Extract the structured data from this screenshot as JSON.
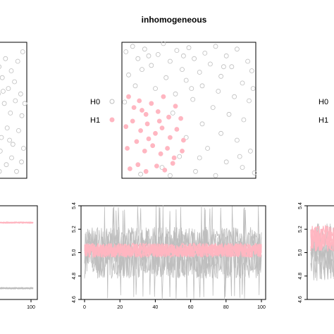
{
  "title": "inhomogeneous",
  "colors": {
    "h0": "#bebebe",
    "h1": "#ffb6c1",
    "frame": "#000000"
  },
  "chart_data": [
    {
      "type": "scatter",
      "panel": "top-left (cropped)",
      "legend": [],
      "series": [
        {
          "name": "",
          "points": [
            [
              0.03,
              0.92
            ],
            [
              0.07,
              0.85
            ],
            [
              0.12,
              0.76
            ],
            [
              0.18,
              0.7
            ],
            [
              0.25,
              0.9
            ],
            [
              0.32,
              0.82
            ],
            [
              0.4,
              0.74
            ],
            [
              0.48,
              0.88
            ],
            [
              0.55,
              0.66
            ],
            [
              0.62,
              0.79
            ],
            [
              0.7,
              0.71
            ],
            [
              0.78,
              0.86
            ],
            [
              0.85,
              0.62
            ],
            [
              0.9,
              0.93
            ],
            [
              0.1,
              0.58
            ],
            [
              0.2,
              0.5
            ],
            [
              0.3,
              0.62
            ],
            [
              0.45,
              0.55
            ],
            [
              0.6,
              0.48
            ],
            [
              0.72,
              0.57
            ],
            [
              0.88,
              0.46
            ],
            [
              0.05,
              0.4
            ],
            [
              0.15,
              0.33
            ],
            [
              0.28,
              0.42
            ],
            [
              0.38,
              0.3
            ],
            [
              0.52,
              0.37
            ],
            [
              0.66,
              0.25
            ],
            [
              0.8,
              0.35
            ],
            [
              0.92,
              0.22
            ],
            [
              0.08,
              0.18
            ],
            [
              0.22,
              0.12
            ],
            [
              0.35,
              0.2
            ],
            [
              0.5,
              0.1
            ],
            [
              0.63,
              0.15
            ],
            [
              0.75,
              0.05
            ],
            [
              0.87,
              0.12
            ],
            [
              0.42,
              0.64
            ],
            [
              0.58,
              0.28
            ],
            [
              0.95,
              0.55
            ],
            [
              0.33,
              0.05
            ]
          ]
        }
      ]
    },
    {
      "type": "scatter",
      "panel": "top-center",
      "legend": [
        "H0",
        "H1"
      ],
      "series": [
        {
          "name": "H0",
          "points": [
            [
              0.03,
              0.93
            ],
            [
              0.08,
              0.97
            ],
            [
              0.12,
              0.88
            ],
            [
              0.17,
              0.95
            ],
            [
              0.22,
              0.83
            ],
            [
              0.27,
              0.91
            ],
            [
              0.31,
              0.99
            ],
            [
              0.36,
              0.86
            ],
            [
              0.41,
              0.94
            ],
            [
              0.45,
              0.8
            ],
            [
              0.5,
              0.96
            ],
            [
              0.54,
              0.88
            ],
            [
              0.58,
              0.78
            ],
            [
              0.62,
              0.92
            ],
            [
              0.66,
              0.84
            ],
            [
              0.7,
              0.97
            ],
            [
              0.74,
              0.75
            ],
            [
              0.78,
              0.9
            ],
            [
              0.82,
              0.82
            ],
            [
              0.86,
              0.95
            ],
            [
              0.9,
              0.7
            ],
            [
              0.94,
              0.86
            ],
            [
              0.97,
              0.79
            ],
            [
              0.05,
              0.76
            ],
            [
              0.15,
              0.8
            ],
            [
              0.33,
              0.74
            ],
            [
              0.48,
              0.72
            ],
            [
              0.6,
              0.68
            ],
            [
              0.72,
              0.64
            ],
            [
              0.84,
              0.6
            ],
            [
              0.95,
              0.57
            ],
            [
              0.4,
              0.62
            ],
            [
              0.53,
              0.58
            ],
            [
              0.68,
              0.52
            ],
            [
              0.8,
              0.47
            ],
            [
              0.91,
              0.43
            ],
            [
              0.98,
              0.66
            ],
            [
              0.6,
              0.4
            ],
            [
              0.74,
              0.33
            ],
            [
              0.86,
              0.28
            ],
            [
              0.96,
              0.2
            ],
            [
              0.64,
              0.22
            ],
            [
              0.78,
              0.12
            ],
            [
              0.9,
              0.08
            ],
            [
              0.55,
              0.05
            ],
            [
              0.7,
              0.02
            ],
            [
              0.99,
              0.04
            ],
            [
              0.48,
              0.3
            ],
            [
              0.43,
              0.16
            ],
            [
              0.1,
              0.68
            ],
            [
              0.25,
              0.66
            ],
            [
              0.38,
              0.48
            ],
            [
              0.02,
              0.56
            ],
            [
              0.14,
              0.03
            ],
            [
              0.3,
              0.08
            ],
            [
              0.36,
              0.02
            ],
            [
              0.88,
              0.16
            ],
            [
              0.58,
              0.15
            ],
            [
              0.2,
              0.9
            ],
            [
              0.46,
              0.9
            ],
            [
              0.76,
              0.82
            ],
            [
              0.52,
              0.66
            ]
          ]
        },
        {
          "name": "H1",
          "points": [
            [
              0.05,
              0.6
            ],
            [
              0.09,
              0.52
            ],
            [
              0.13,
              0.57
            ],
            [
              0.18,
              0.47
            ],
            [
              0.22,
              0.55
            ],
            [
              0.27,
              0.49
            ],
            [
              0.31,
              0.6
            ],
            [
              0.35,
              0.45
            ],
            [
              0.4,
              0.53
            ],
            [
              0.44,
              0.44
            ],
            [
              0.03,
              0.38
            ],
            [
              0.08,
              0.42
            ],
            [
              0.14,
              0.35
            ],
            [
              0.19,
              0.4
            ],
            [
              0.25,
              0.33
            ],
            [
              0.3,
              0.37
            ],
            [
              0.36,
              0.3
            ],
            [
              0.41,
              0.36
            ],
            [
              0.46,
              0.28
            ],
            [
              0.04,
              0.22
            ],
            [
              0.11,
              0.27
            ],
            [
              0.17,
              0.2
            ],
            [
              0.23,
              0.24
            ],
            [
              0.29,
              0.18
            ],
            [
              0.34,
              0.22
            ],
            [
              0.39,
              0.15
            ],
            [
              0.45,
              0.2
            ],
            [
              0.06,
              0.07
            ],
            [
              0.12,
              0.1
            ],
            [
              0.18,
              0.05
            ],
            [
              0.26,
              0.09
            ],
            [
              0.32,
              0.06
            ],
            [
              0.38,
              0.11
            ],
            [
              0.2,
              0.29
            ],
            [
              0.28,
              0.42
            ],
            [
              0.15,
              0.5
            ]
          ]
        }
      ]
    },
    {
      "type": "scatter",
      "panel": "top-right (cropped)",
      "legend": [
        "H0",
        "H1"
      ],
      "series": []
    },
    {
      "type": "line",
      "panel": "bottom-left (cropped)",
      "x_ticks": [
        "100"
      ],
      "xlim": [
        0,
        100
      ],
      "series": [
        {
          "name": "",
          "level": 0.82,
          "spread": 0.012
        },
        {
          "name": "",
          "level": 0.12,
          "spread": 0.012
        }
      ]
    },
    {
      "type": "line",
      "panel": "bottom-center",
      "x_ticks": [
        "0",
        "20",
        "40",
        "60",
        "80",
        "100"
      ],
      "y_ticks": [
        "4.6",
        "4.8",
        "5.0",
        "5.2",
        "5.4"
      ],
      "xlim": [
        0,
        100
      ],
      "ylim": [
        4.6,
        5.4
      ],
      "series": [
        {
          "name": "",
          "mean": 5.0,
          "band": [
            4.78,
            5.22
          ],
          "spikes": [
            4.62,
            5.38
          ]
        },
        {
          "name": "",
          "mean": 5.02,
          "band": [
            4.96,
            5.08
          ]
        }
      ]
    },
    {
      "type": "line",
      "panel": "bottom-right (cropped)",
      "y_ticks": [
        "4.6",
        "4.8",
        "5.0",
        "5.2",
        "5.4"
      ],
      "ylim": [
        4.6,
        5.4
      ],
      "series": [
        {
          "name": "",
          "mean": 5.0,
          "band": [
            4.75,
            5.25
          ]
        },
        {
          "name": "",
          "mean": 5.12,
          "band": [
            5.0,
            5.22
          ]
        }
      ]
    }
  ]
}
